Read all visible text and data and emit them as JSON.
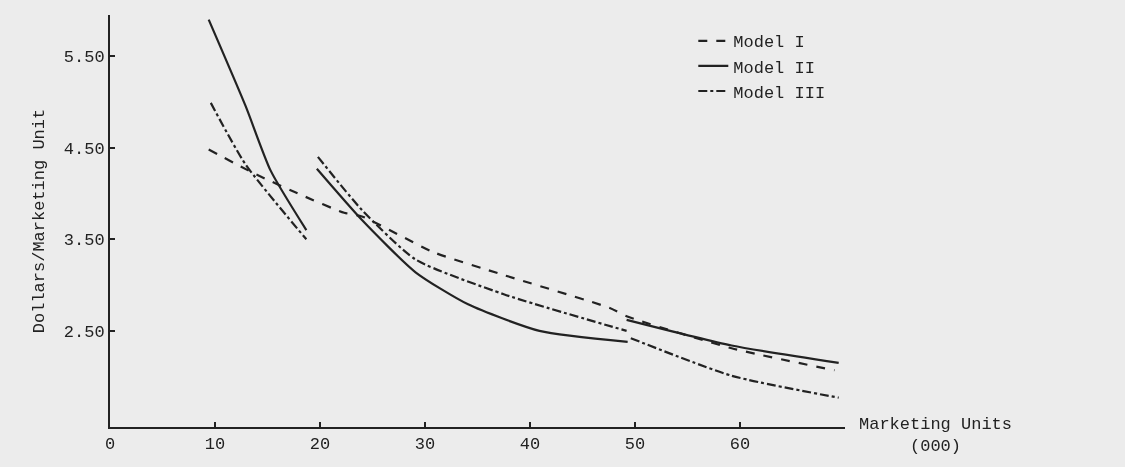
{
  "chart_data": {
    "type": "line",
    "xlabel": "Marketing Units\n(000)",
    "ylabel": "Dollars/Marketing Unit",
    "xlim": [
      0,
      70
    ],
    "ylim": [
      1.45,
      5.95
    ],
    "xticks": [
      0,
      10,
      20,
      30,
      40,
      50,
      60
    ],
    "yticks": [
      {
        "value": 2.5,
        "label": "2.50"
      },
      {
        "value": 3.5,
        "label": "3.50"
      },
      {
        "value": 4.5,
        "label": "4.50"
      },
      {
        "value": 5.5,
        "label": "5.50"
      }
    ],
    "grid": false,
    "legend": "top right",
    "marker": "none",
    "series": [
      {
        "name": "Model I",
        "color": "#222222",
        "line_style": "dashed",
        "x": [
          9.4,
          13.9,
          18.3,
          22.3,
          24,
          30.8,
          37.5,
          47.6,
          49.2,
          59.2,
          69
        ],
        "values": [
          4.48,
          4.21,
          3.98,
          3.79,
          3.75,
          3.36,
          3.11,
          2.75,
          2.66,
          2.31,
          2.07
        ]
      },
      {
        "name": "Model II",
        "color": "#222222",
        "line_style": "solid",
        "x": [
          9.4,
          12.9,
          15.3,
          18.7,
          null,
          19.7,
          24,
          29.1,
          34.1,
          40.9,
          49.3,
          null,
          49.2,
          59.2,
          69.4
        ],
        "values": [
          5.9,
          4.96,
          4.25,
          3.6,
          null,
          4.27,
          3.71,
          3.14,
          2.79,
          2.5,
          2.38,
          null,
          2.62,
          2.34,
          2.15
        ]
      },
      {
        "name": "Model III",
        "color": "#222222",
        "line_style": "dashdot",
        "x": [
          9.6,
          12.9,
          18.7,
          null,
          19.8,
          24,
          29.1,
          37.5,
          49.2,
          null,
          49.6,
          59.2,
          69.4
        ],
        "values": [
          4.99,
          4.32,
          3.5,
          null,
          4.4,
          3.82,
          3.28,
          2.9,
          2.5,
          null,
          2.42,
          2.01,
          1.77
        ]
      }
    ]
  }
}
